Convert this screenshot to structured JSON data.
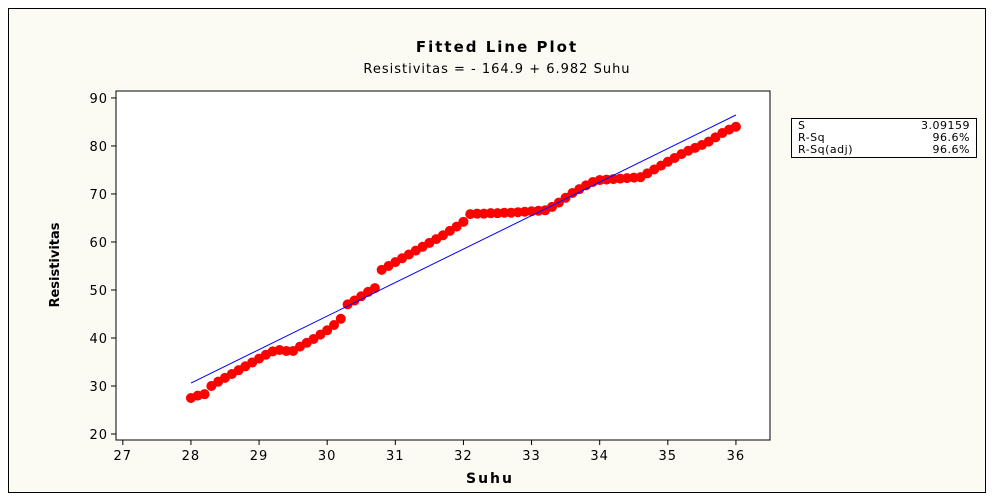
{
  "chart_data": {
    "type": "scatter",
    "title": "Fitted Line Plot",
    "subtitle": "Resistivitas =  - 164.9 + 6.982 Suhu",
    "x_label": "Suhu",
    "y_label": "Resistivitas",
    "xlim": [
      26.9,
      36.5
    ],
    "ylim": [
      18.75,
      91.45
    ],
    "xticks": [
      27,
      28,
      29,
      30,
      31,
      32,
      33,
      34,
      35,
      36
    ],
    "yticks": [
      20,
      30,
      40,
      50,
      60,
      70,
      80,
      90
    ],
    "color": "#ff0000",
    "x": [
      28.0,
      28.1,
      28.2,
      28.3,
      28.4,
      28.5,
      28.6,
      28.7,
      28.8,
      28.9,
      29.0,
      29.1,
      29.2,
      29.3,
      29.4,
      29.5,
      29.6,
      29.7,
      29.8,
      29.9,
      30.0,
      30.1,
      30.2,
      30.3,
      30.4,
      30.5,
      30.6,
      30.7,
      30.8,
      30.9,
      31.0,
      31.1,
      31.2,
      31.3,
      31.4,
      31.5,
      31.6,
      31.7,
      31.8,
      31.9,
      32.0,
      32.1,
      32.2,
      32.3,
      32.4,
      32.5,
      32.6,
      32.7,
      32.8,
      32.9,
      33.0,
      33.1,
      33.2,
      33.3,
      33.4,
      33.5,
      33.6,
      33.7,
      33.8,
      33.9,
      34.0,
      34.1,
      34.2,
      34.3,
      34.4,
      34.5,
      34.6,
      34.7,
      34.8,
      34.9,
      35.0,
      35.1,
      35.2,
      35.3,
      35.4,
      35.5,
      35.6,
      35.7,
      35.8,
      35.9,
      36.0
    ],
    "values": [
      27.5,
      28.0,
      28.3,
      30.0,
      30.9,
      31.7,
      32.5,
      33.3,
      34.1,
      34.9,
      35.7,
      36.5,
      37.2,
      37.5,
      37.3,
      37.3,
      38.2,
      39.0,
      39.8,
      40.7,
      41.6,
      42.7,
      44.0,
      47.0,
      47.8,
      48.7,
      49.6,
      50.4,
      54.2,
      55.0,
      55.8,
      56.6,
      57.4,
      58.2,
      59.0,
      59.8,
      60.6,
      61.4,
      62.3,
      63.2,
      64.2,
      65.8,
      65.9,
      65.9,
      66.0,
      66.0,
      66.1,
      66.1,
      66.2,
      66.3,
      66.4,
      66.5,
      66.6,
      67.3,
      68.2,
      69.2,
      70.2,
      71.0,
      71.8,
      72.5,
      72.9,
      73.0,
      73.1,
      73.2,
      73.3,
      73.4,
      73.5,
      74.3,
      75.1,
      75.9,
      76.7,
      77.5,
      78.3,
      79.0,
      79.6,
      80.2,
      80.9,
      81.8,
      82.7,
      83.4,
      84.0
    ],
    "fit": {
      "color": "#0000ff",
      "x": [
        28,
        36
      ],
      "values": [
        30.6,
        86.45
      ]
    },
    "stats": [
      {
        "label": "S",
        "value": "3.09159"
      },
      {
        "label": "R-Sq",
        "value": "96.6%"
      },
      {
        "label": "R-Sq(adj)",
        "value": "96.6%"
      }
    ]
  }
}
